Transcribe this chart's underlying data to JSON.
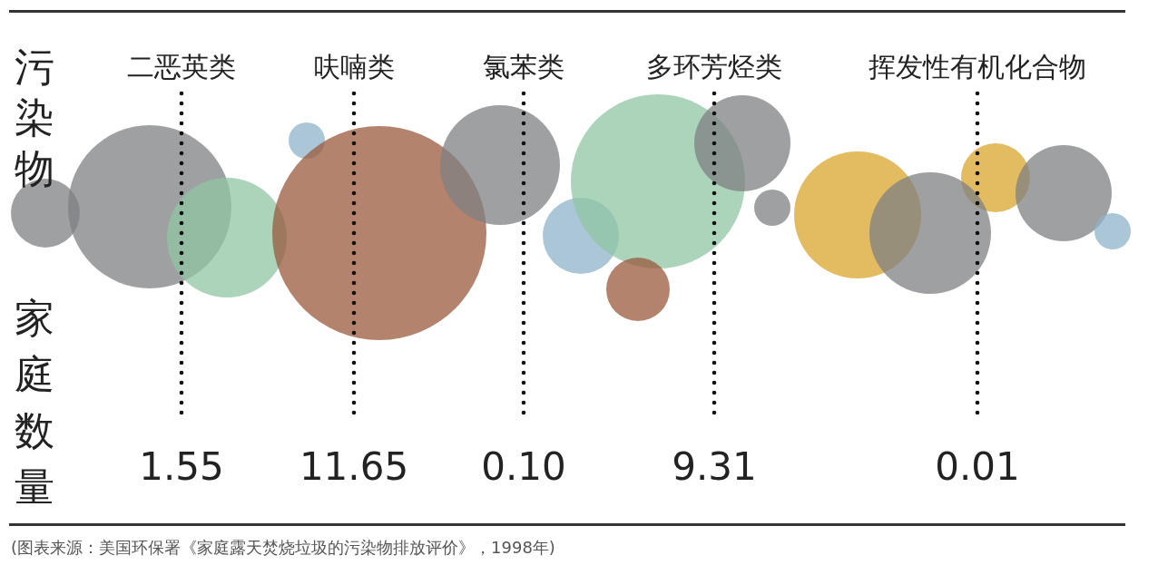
{
  "chart_data": {
    "type": "other",
    "categories": [
      "二恶英类",
      "呋喃类",
      "氯苯类",
      "多环芳烃类",
      "挥发性有机化合物"
    ],
    "values": [
      1.55,
      11.65,
      0.1,
      9.31,
      0.01
    ],
    "value_labels": [
      "1.55",
      "11.65",
      "0.10",
      "9.31",
      "0.01"
    ],
    "xlabel": "污染物",
    "ylabel": "家庭数量",
    "annotations": [
      "(图表来源：美国环保署《家庭露天焚烧垃圾的污染物排放评价》，1998年)"
    ]
  }
}
